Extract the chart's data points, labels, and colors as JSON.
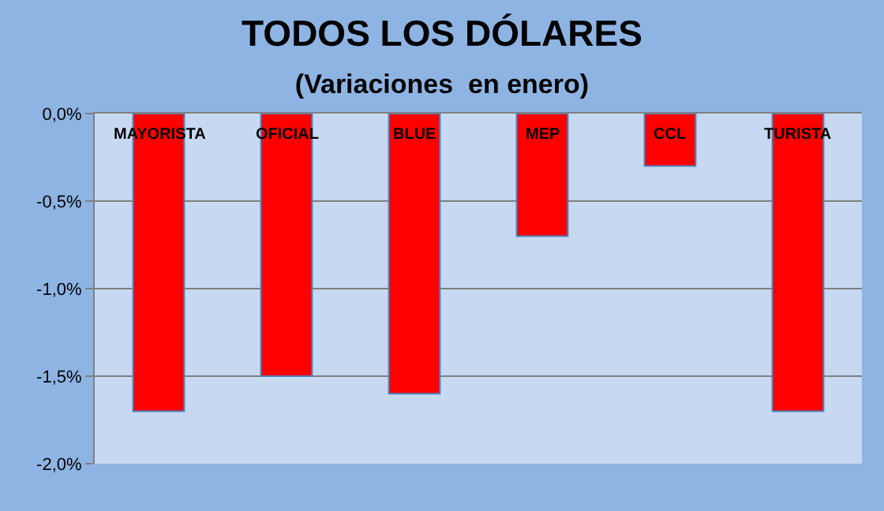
{
  "chart_data": {
    "type": "bar",
    "title": "TODOS LOS DÓLARES",
    "subtitle": "(Variaciones  en enero)",
    "categories": [
      "MAYORISTA",
      "OFICIAL",
      "BLUE",
      "MEP",
      "CCL",
      "TURISTA"
    ],
    "values": [
      -1.7,
      -1.5,
      -1.6,
      -0.7,
      -0.3,
      -1.7
    ],
    "color": "#ff0000",
    "ylim": [
      -2,
      0
    ],
    "yticks": [
      {
        "value": 0,
        "label": "0,0%"
      },
      {
        "value": -0.5,
        "label": "-0,5%"
      },
      {
        "value": -1,
        "label": "-1,0%"
      },
      {
        "value": -1.5,
        "label": "-1,5%"
      },
      {
        "value": -2,
        "label": "-2,0%"
      }
    ],
    "grid": "y",
    "legend": false
  }
}
